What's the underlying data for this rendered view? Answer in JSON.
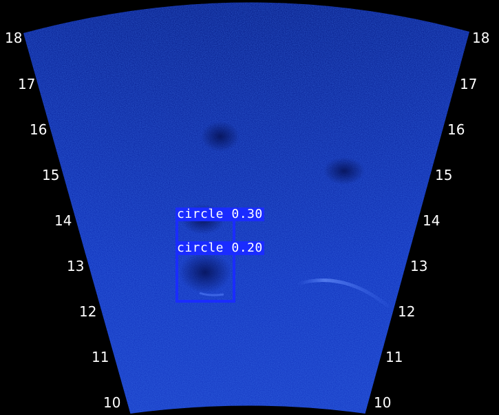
{
  "colors": {
    "background": "#000000",
    "sonar_base": "#1236b8",
    "sonar_dark": "#0a1f78",
    "detection": "#1a2cff",
    "label_text": "#ffffff"
  },
  "range_labels": {
    "left": [
      "18",
      "17",
      "16",
      "15",
      "14",
      "13",
      "12",
      "11",
      "10"
    ],
    "right": [
      "18",
      "17",
      "16",
      "15",
      "14",
      "13",
      "12",
      "11",
      "10"
    ]
  },
  "detections": [
    {
      "label": "circle 0.30"
    },
    {
      "label": "circle 0.20"
    }
  ]
}
